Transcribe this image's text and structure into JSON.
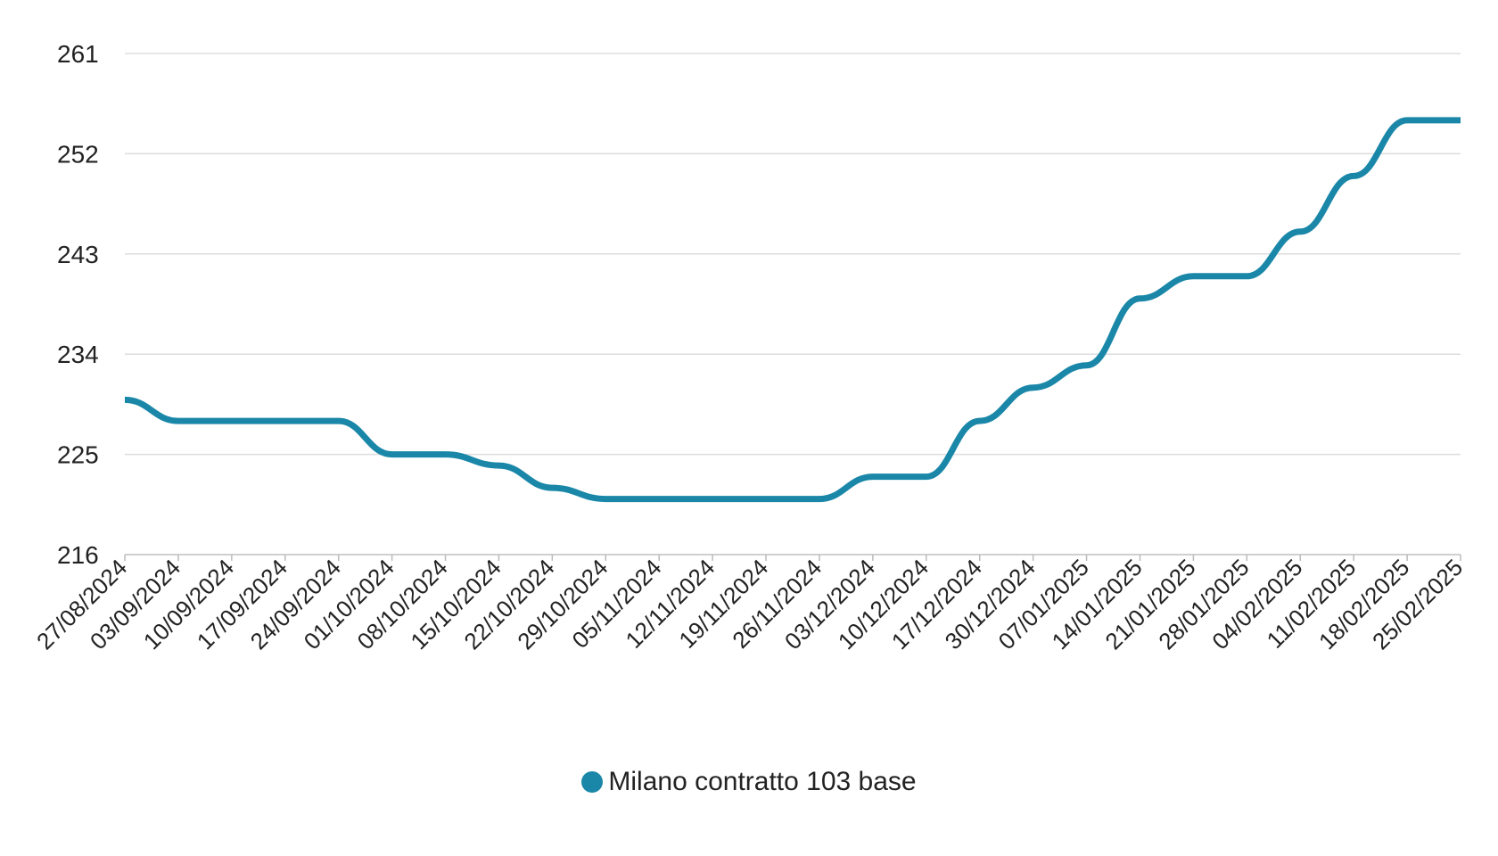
{
  "chart_data": {
    "type": "line",
    "title": "",
    "xlabel": "",
    "ylabel": "",
    "ylim": [
      216,
      261
    ],
    "yticks": [
      216,
      225,
      234,
      243,
      252,
      261
    ],
    "x": [
      "27/08/2024",
      "03/09/2024",
      "10/09/2024",
      "17/09/2024",
      "24/09/2024",
      "01/10/2024",
      "08/10/2024",
      "15/10/2024",
      "22/10/2024",
      "29/10/2024",
      "05/11/2024",
      "12/11/2024",
      "19/11/2024",
      "26/11/2024",
      "03/12/2024",
      "10/12/2024",
      "17/12/2024",
      "30/12/2024",
      "07/01/2025",
      "14/01/2025",
      "21/01/2025",
      "28/01/2025",
      "04/02/2025",
      "11/02/2025",
      "18/02/2025",
      "25/02/2025"
    ],
    "series": [
      {
        "name": "Milano contratto 103 base",
        "color": "#1a87a8",
        "values": [
          229.9,
          228.0,
          228.0,
          228.0,
          228.0,
          225.0,
          225.0,
          224.0,
          222.0,
          221.0,
          221.0,
          221.0,
          221.0,
          221.0,
          223.0,
          223.0,
          228.0,
          231.0,
          233.0,
          239.0,
          241.0,
          241.0,
          245.0,
          250.0,
          255.0,
          255.0
        ]
      }
    ],
    "grid": true,
    "legend_position": "bottom"
  },
  "legend": {
    "label": "Milano contratto 103 base",
    "color": "#1a87a8"
  }
}
